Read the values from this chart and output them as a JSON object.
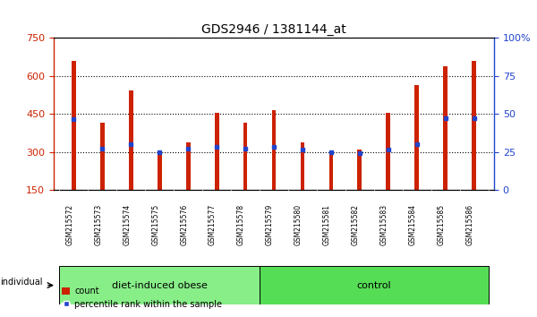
{
  "title": "GDS2946 / 1381144_at",
  "samples": [
    "GSM215572",
    "GSM215573",
    "GSM215574",
    "GSM215575",
    "GSM215576",
    "GSM215577",
    "GSM215578",
    "GSM215579",
    "GSM215580",
    "GSM215581",
    "GSM215582",
    "GSM215583",
    "GSM215584",
    "GSM215585",
    "GSM215586"
  ],
  "counts": [
    660,
    415,
    545,
    295,
    340,
    455,
    415,
    465,
    340,
    300,
    310,
    455,
    565,
    640,
    660
  ],
  "percentile_vals": [
    430,
    315,
    330,
    300,
    315,
    320,
    315,
    320,
    310,
    300,
    295,
    310,
    330,
    435,
    435
  ],
  "bar_color": "#cc2200",
  "blue_color": "#2244cc",
  "ymin": 150,
  "ymax": 750,
  "yticks": [
    150,
    300,
    450,
    600,
    750
  ],
  "right_yticks": [
    0,
    25,
    50,
    75,
    100
  ],
  "groups": [
    {
      "label": "diet-induced obese",
      "start": 0,
      "end": 7,
      "color": "#88ee88"
    },
    {
      "label": "control",
      "start": 7,
      "end": 15,
      "color": "#55dd55"
    }
  ],
  "group_row_color": "#cccccc",
  "title_fontsize": 10,
  "axis_color_left": "#cc2200",
  "axis_color_right": "#2244cc",
  "bar_width": 0.15,
  "figure_bg": "#ffffff"
}
